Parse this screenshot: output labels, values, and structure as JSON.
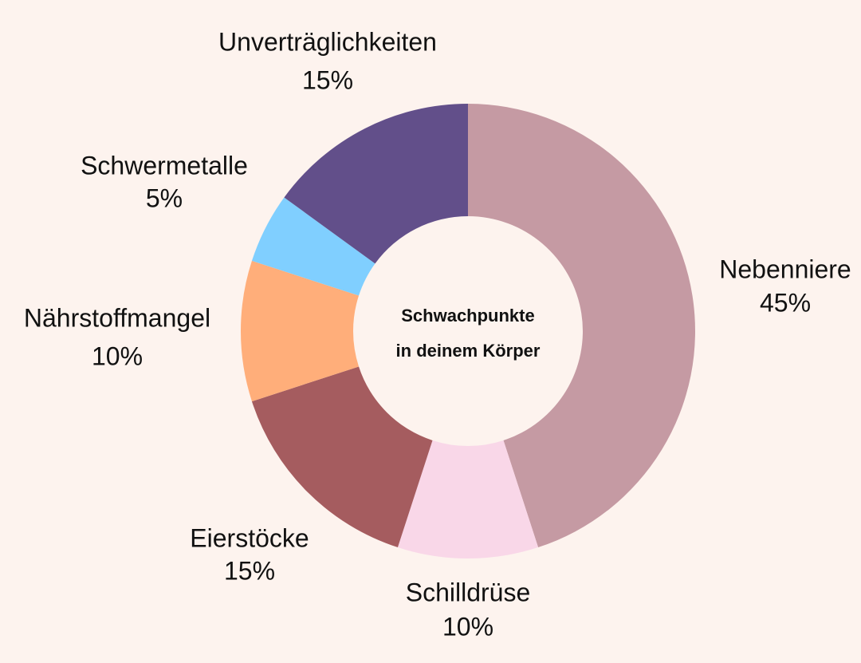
{
  "chart_data": {
    "type": "donut",
    "title": [
      "Schwachpunkte",
      "in deinem Körper"
    ],
    "categories": [
      "Nebenniere",
      "Schilldrüse",
      "Eierstöcke",
      "Nährstoffmangel",
      "Schwermetalle",
      "Unverträglichkeiten"
    ],
    "values": [
      45,
      10,
      15,
      10,
      5,
      15
    ],
    "value_labels": [
      "45%",
      "10%",
      "15%",
      "10%",
      "5%",
      "15%"
    ],
    "colors": [
      "#c59aa3",
      "#f9d7e8",
      "#a55c5f",
      "#ffae7a",
      "#80cfff",
      "#624f8a"
    ]
  }
}
